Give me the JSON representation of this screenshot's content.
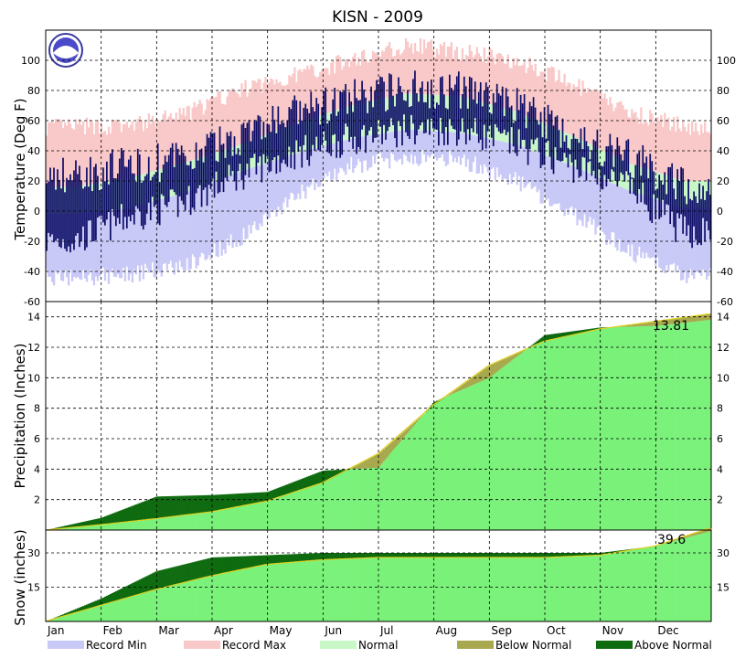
{
  "chart_data": {
    "title": "KISN - 2009",
    "type": "area",
    "months": [
      "Jan",
      "Feb",
      "Mar",
      "Apr",
      "May",
      "Jun",
      "Jul",
      "Aug",
      "Sep",
      "Oct",
      "Nov",
      "Dec"
    ],
    "colors": {
      "record_min": "#c9c9f7",
      "record_max": "#f9c8c8",
      "normal": "#c8f7c8",
      "observed": "#0b0b66",
      "cumulative_normal": "#7af27a",
      "below_normal": "#a8a84e",
      "above_normal": "#0f6b0f",
      "normal_line": "#e0d020"
    },
    "legend": [
      {
        "key": "record_min",
        "label": "Record Min"
      },
      {
        "key": "record_max",
        "label": "Record Max"
      },
      {
        "key": "normal",
        "label": "Normal"
      },
      {
        "key": "below_normal",
        "label": "Below Normal"
      },
      {
        "key": "above_normal",
        "label": "Above Normal"
      }
    ],
    "panels": [
      {
        "id": "temperature",
        "ylabel": "Temperature (Deg F)",
        "ylim": [
          -60,
          120
        ],
        "ticks": [
          -60,
          -40,
          -20,
          0,
          20,
          40,
          60,
          80,
          100
        ],
        "monthly": {
          "record_max_high": [
            56,
            56,
            64,
            80,
            90,
            100,
            110,
            106,
            100,
            84,
            66,
            56
          ],
          "normal_high": [
            16,
            22,
            32,
            44,
            58,
            70,
            78,
            76,
            66,
            50,
            32,
            20
          ],
          "normal_low": [
            -2,
            2,
            12,
            26,
            38,
            48,
            54,
            52,
            44,
            30,
            14,
            2
          ],
          "record_min_low": [
            -44,
            -42,
            -36,
            -18,
            10,
            30,
            36,
            34,
            20,
            -2,
            -26,
            -42
          ],
          "observed_high": [
            24,
            30,
            34,
            50,
            64,
            74,
            82,
            80,
            70,
            50,
            36,
            16
          ],
          "observed_low": [
            -20,
            -4,
            6,
            24,
            38,
            48,
            54,
            54,
            44,
            30,
            16,
            -14
          ]
        }
      },
      {
        "id": "precipitation",
        "ylabel": "Precipitation (Inches)",
        "ylim": [
          0,
          15
        ],
        "ticks": [
          2,
          4,
          6,
          8,
          10,
          12,
          14
        ],
        "final_label": "13.81",
        "normal_cumulative": [
          0,
          0.35,
          0.75,
          1.2,
          1.9,
          3.1,
          5.0,
          8.2,
          10.8,
          12.4,
          13.2,
          13.7,
          14.2
        ],
        "observed_cumulative": [
          0,
          0.8,
          2.2,
          2.3,
          2.5,
          3.9,
          4.1,
          8.4,
          10.0,
          12.8,
          13.3,
          13.4,
          13.81
        ]
      },
      {
        "id": "snow",
        "ylabel": "Snow (inches)",
        "ylim": [
          0,
          40
        ],
        "ticks": [
          15,
          30
        ],
        "final_label": "39.6",
        "normal_cumulative": [
          0,
          7,
          14,
          20,
          25,
          27,
          28,
          28,
          28,
          28,
          29,
          33,
          41
        ],
        "observed_cumulative": [
          0,
          10,
          22,
          28,
          29,
          30,
          30,
          30,
          30,
          30,
          30,
          33,
          39.6
        ]
      }
    ]
  }
}
